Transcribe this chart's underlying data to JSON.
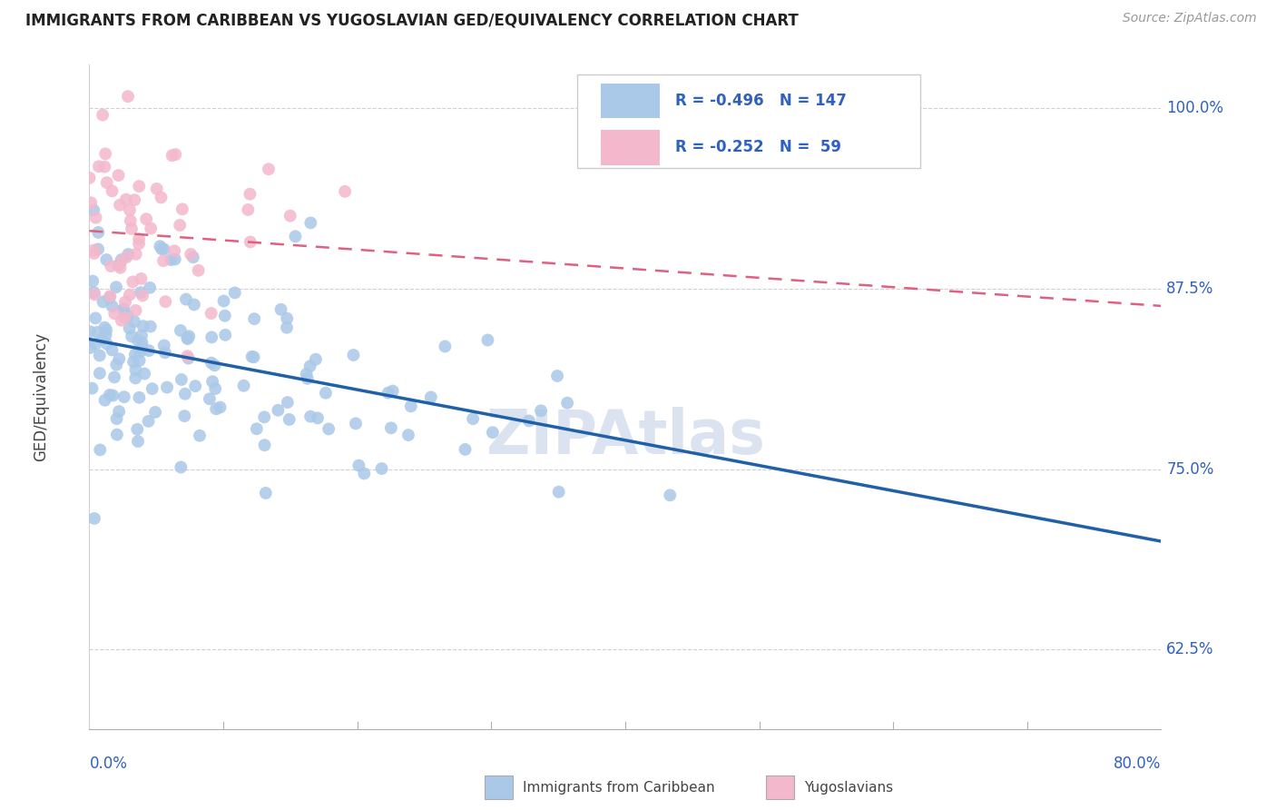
{
  "title": "IMMIGRANTS FROM CARIBBEAN VS YUGOSLAVIAN GED/EQUIVALENCY CORRELATION CHART",
  "source": "Source: ZipAtlas.com",
  "ylabel": "GED/Equivalency",
  "xmin": 0.0,
  "xmax": 80.0,
  "ymin": 57.0,
  "ymax": 103.0,
  "yticks": [
    62.5,
    75.0,
    87.5,
    100.0
  ],
  "ytick_labels": [
    "62.5%",
    "75.0%",
    "87.5%",
    "100.0%"
  ],
  "blue_R": -0.496,
  "blue_N": 147,
  "pink_R": -0.252,
  "pink_N": 59,
  "blue_color": "#aac8e8",
  "pink_color": "#f4b8cc",
  "blue_line_color": "#2060a8",
  "pink_line_color": "#e06080",
  "legend_text_color": "#3060c0",
  "watermark": "ZIPAtlas",
  "watermark_color": "#ccd8ec",
  "blue_intercept": 84.0,
  "blue_slope": -0.175,
  "pink_intercept": 91.5,
  "pink_slope": -0.065,
  "blue_noise_std": 3.8,
  "pink_noise_std": 3.5,
  "blue_seed": 42,
  "pink_seed": 7,
  "xtick_positions": [
    0,
    10,
    20,
    30,
    40,
    50,
    60,
    70,
    80
  ]
}
